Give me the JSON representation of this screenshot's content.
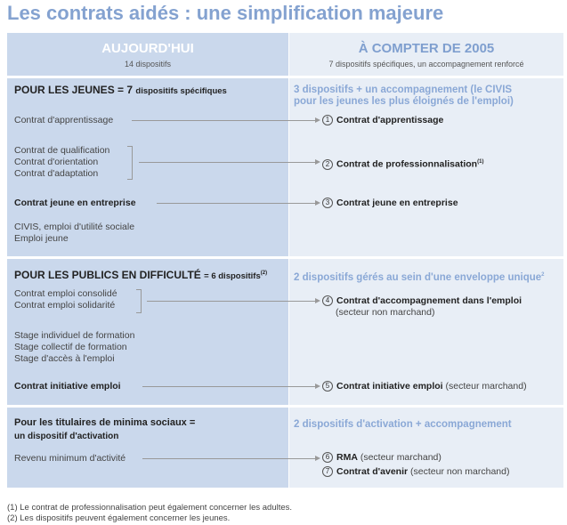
{
  "title": "Les contrats aidés : une simplification majeure",
  "header": {
    "left_title": "AUJOURD'HUI",
    "left_sub": "14 dispositifs",
    "right_title": "À COMPTER DE 2005",
    "right_sub": "7 dispositifs spécifiques, un accompagnement renforcé"
  },
  "jeunes": {
    "title": "POUR LES JEUNES",
    "title_suffix": "= 7",
    "title_small": "dispositifs spécifiques",
    "right_title": [
      "3 dispositifs + un accompagnement (le CIVIS",
      "pour les jeunes les plus éloignés de l'emploi)"
    ],
    "left": [
      "Contrat d'apprentissage",
      "Contrat de qualification",
      "Contrat d'orientation",
      "Contrat d'adaptation",
      "Contrat jeune en entreprise",
      "CIVIS, emploi d'utilité sociale",
      "Emploi jeune"
    ],
    "right": [
      {
        "n": "1",
        "label": "Contrat d'apprentissage"
      },
      {
        "n": "2",
        "label": "Contrat de professionnalisation",
        "sup": "(1)"
      },
      {
        "n": "3",
        "label": "Contrat jeune en entreprise"
      }
    ]
  },
  "publics": {
    "title": "POUR LES PUBLICS EN DIFFICULTÉ",
    "title_small": "= 6 dispositifs",
    "sup": "(2)",
    "right_title": "2 dispositifs gérés au sein d'une enveloppe unique",
    "right_sup": "2",
    "left": [
      "Contrat emploi consolidé",
      "Contrat emploi solidarité",
      "Stage individuel de formation",
      "Stage collectif de formation",
      "Stage d'accès à l'emploi",
      "Contrat initiative emploi"
    ],
    "right": [
      {
        "n": "4",
        "label": "Contrat d'accompagnement dans l'emploi",
        "note": "(secteur non marchand)"
      },
      {
        "n": "5",
        "label": "Contrat initiative emploi",
        "note": "(secteur marchand)"
      }
    ]
  },
  "minima": {
    "title": "Pour les titulaires de minima sociaux =",
    "title2": "un dispositif d'activation",
    "right_title": "2 dispositifs d'activation + accompagnement",
    "left": [
      "Revenu minimum d'activité"
    ],
    "right": [
      {
        "n": "6",
        "label": "RMA",
        "note": "(secteur marchand)"
      },
      {
        "n": "7",
        "label": "Contrat d'avenir",
        "note": "(secteur non marchand)"
      }
    ]
  },
  "footnotes": [
    "(1) Le contrat de professionnalisation peut également concerner les adultes.",
    "(2) Les dispositifs peuvent également concerner les jeunes."
  ]
}
